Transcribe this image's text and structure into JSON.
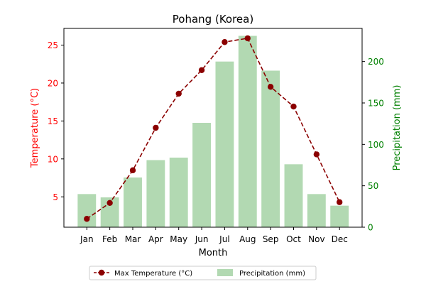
{
  "chart_data": {
    "type": "bar",
    "title": "Pohang (Korea)",
    "xlabel": "Month",
    "categories": [
      "Jan",
      "Feb",
      "Mar",
      "Apr",
      "May",
      "Jun",
      "Jul",
      "Aug",
      "Sep",
      "Oct",
      "Nov",
      "Dec"
    ],
    "left_axis": {
      "label": "Temperature (°C)",
      "color": "#ff0000",
      "ylim": [
        1.0,
        27.2
      ],
      "ticks": [
        5,
        10,
        15,
        20,
        25
      ]
    },
    "right_axis": {
      "label": "Precipitation (mm)",
      "color": "#008000",
      "ylim": [
        0,
        240
      ],
      "ticks": [
        0,
        50,
        100,
        150,
        200
      ]
    },
    "series": [
      {
        "name": "Max Temperature (°C)",
        "type": "line",
        "axis": "left",
        "color": "#8b0000",
        "marker": "circle",
        "line_style": "dashed",
        "values": [
          2.1,
          4.2,
          8.5,
          14.1,
          18.6,
          21.7,
          25.4,
          25.9,
          19.5,
          16.9,
          10.6,
          4.3
        ]
      },
      {
        "name": "Precipitation (mm)",
        "type": "bar",
        "axis": "right",
        "color": "#b2d9b2",
        "values": [
          40,
          36,
          60,
          81,
          84,
          126,
          200,
          231,
          189,
          76,
          40,
          26
        ]
      }
    ],
    "legend": {
      "placement": "bottom-center",
      "entries": [
        "Max Temperature (°C)",
        "Precipitation (mm)"
      ]
    },
    "grid": false
  }
}
